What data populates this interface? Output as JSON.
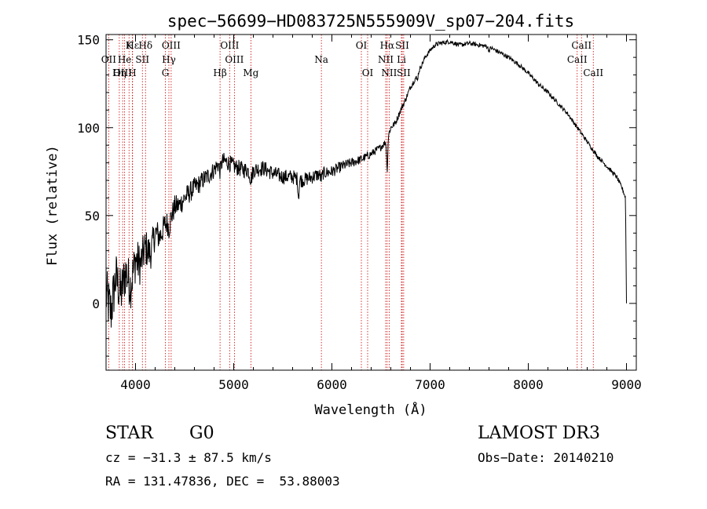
{
  "chart_data": {
    "type": "line",
    "title": "spec−56699−HD083725N555909V_sp07−204.fits",
    "xlabel": "Wavelength (Å)",
    "ylabel": "Flux (relative)",
    "xlim": [
      3700,
      9100
    ],
    "ylim": [
      -38,
      153
    ],
    "x_ticks": [
      4000,
      5000,
      6000,
      7000,
      8000,
      9000
    ],
    "y_ticks": [
      0,
      50,
      100,
      150
    ],
    "series": [
      {
        "name": "spectrum",
        "anchors": [
          [
            3700,
            5
          ],
          [
            3750,
            -5
          ],
          [
            3800,
            15
          ],
          [
            3850,
            5
          ],
          [
            3900,
            18
          ],
          [
            3950,
            10
          ],
          [
            4000,
            25
          ],
          [
            4050,
            22
          ],
          [
            4100,
            32
          ],
          [
            4150,
            28
          ],
          [
            4200,
            40
          ],
          [
            4250,
            38
          ],
          [
            4300,
            45
          ],
          [
            4350,
            47
          ],
          [
            4400,
            55
          ],
          [
            4450,
            56
          ],
          [
            4500,
            60
          ],
          [
            4550,
            63
          ],
          [
            4600,
            66
          ],
          [
            4650,
            68
          ],
          [
            4700,
            71
          ],
          [
            4750,
            73
          ],
          [
            4800,
            76
          ],
          [
            4850,
            80
          ],
          [
            4900,
            81
          ],
          [
            4950,
            80
          ],
          [
            5000,
            78
          ],
          [
            5100,
            76
          ],
          [
            5200,
            76
          ],
          [
            5300,
            77
          ],
          [
            5400,
            74
          ],
          [
            5500,
            72
          ],
          [
            5600,
            72
          ],
          [
            5700,
            70
          ],
          [
            5800,
            72
          ],
          [
            5900,
            74
          ],
          [
            6000,
            75
          ],
          [
            6100,
            78
          ],
          [
            6200,
            80
          ],
          [
            6300,
            82
          ],
          [
            6400,
            85
          ],
          [
            6500,
            89
          ],
          [
            6550,
            92
          ],
          [
            6600,
            100
          ],
          [
            6650,
            103
          ],
          [
            6700,
            110
          ],
          [
            6750,
            116
          ],
          [
            6800,
            123
          ],
          [
            6850,
            128
          ],
          [
            6900,
            134
          ],
          [
            6950,
            140
          ],
          [
            7000,
            144
          ],
          [
            7050,
            147
          ],
          [
            7100,
            148
          ],
          [
            7200,
            149
          ],
          [
            7300,
            147
          ],
          [
            7400,
            148
          ],
          [
            7500,
            147
          ],
          [
            7600,
            146
          ],
          [
            7700,
            143
          ],
          [
            7800,
            140
          ],
          [
            7900,
            136
          ],
          [
            8000,
            131
          ],
          [
            8100,
            125
          ],
          [
            8200,
            120
          ],
          [
            8300,
            114
          ],
          [
            8400,
            108
          ],
          [
            8500,
            100
          ],
          [
            8600,
            92
          ],
          [
            8700,
            84
          ],
          [
            8800,
            78
          ],
          [
            8900,
            72
          ],
          [
            8960,
            65
          ],
          [
            8990,
            60
          ],
          [
            9000,
            0
          ]
        ],
        "noise": [
          [
            3700,
            16
          ],
          [
            4000,
            13
          ],
          [
            4300,
            7
          ],
          [
            4800,
            5
          ],
          [
            5800,
            4
          ],
          [
            6500,
            2
          ],
          [
            7000,
            1.3
          ],
          [
            9000,
            1.2
          ]
        ],
        "dips": [
          [
            6563,
            -18,
            8
          ],
          [
            4861,
            -5,
            12
          ],
          [
            4340,
            -4,
            10
          ],
          [
            5175,
            -5,
            18
          ],
          [
            5892,
            -3,
            12
          ],
          [
            5660,
            -10,
            8
          ],
          [
            6870,
            -3,
            10
          ],
          [
            7600,
            -2,
            12
          ]
        ]
      }
    ],
    "lines": [
      {
        "name": "Hε",
        "wl": 3970,
        "row": 0
      },
      {
        "name": "K",
        "wl": 3934,
        "row": 0
      },
      {
        "name": "Hδ",
        "wl": 4102,
        "row": 0
      },
      {
        "name": "OIII",
        "wl": 4363,
        "row": 0
      },
      {
        "name": "OIII",
        "wl": 4959,
        "row": 0
      },
      {
        "name": "OI",
        "wl": 6300,
        "row": 0
      },
      {
        "name": "Hα",
        "wl": 6563,
        "row": 0
      },
      {
        "name": "SII",
        "wl": 6716,
        "row": 0
      },
      {
        "name": "CaII",
        "wl": 8542,
        "row": 0
      },
      {
        "name": "OII",
        "wl": 3727,
        "row": 1
      },
      {
        "name": "He",
        "wl": 3889,
        "row": 1
      },
      {
        "name": "SII",
        "wl": 4070,
        "row": 1
      },
      {
        "name": "Hγ",
        "wl": 4340,
        "row": 1
      },
      {
        "name": "OIII",
        "wl": 5007,
        "row": 1
      },
      {
        "name": "Na",
        "wl": 5893,
        "row": 1
      },
      {
        "name": "NII",
        "wl": 6548,
        "row": 1
      },
      {
        "name": "Li",
        "wl": 6708,
        "row": 1
      },
      {
        "name": "CaII",
        "wl": 8498,
        "row": 1
      },
      {
        "name": "OIII",
        "wl": 3869,
        "row": 2
      },
      {
        "name": "Hη",
        "wl": 3835,
        "row": 2
      },
      {
        "name": "H",
        "wl": 3968,
        "row": 2
      },
      {
        "name": "G",
        "wl": 4304,
        "row": 2
      },
      {
        "name": "Hβ",
        "wl": 4861,
        "row": 2
      },
      {
        "name": "Mg",
        "wl": 5175,
        "row": 2
      },
      {
        "name": "OI",
        "wl": 6364,
        "row": 2
      },
      {
        "name": "NII",
        "wl": 6583,
        "row": 2
      },
      {
        "name": "SII",
        "wl": 6731,
        "row": 2
      },
      {
        "name": "CaII",
        "wl": 8662,
        "row": 2
      }
    ],
    "grid": false
  },
  "footer": {
    "object_class": "STAR",
    "subclass": "G0",
    "redshift": "cz = −31.3 ± 87.5 km/s",
    "coords": "RA = 131.47836, DEC =  53.88003",
    "survey": "LAMOST DR3",
    "obs_date": "Obs−Date: 20140210"
  },
  "colors": {
    "ink": "#000000",
    "line_marker": "#cc0000"
  }
}
